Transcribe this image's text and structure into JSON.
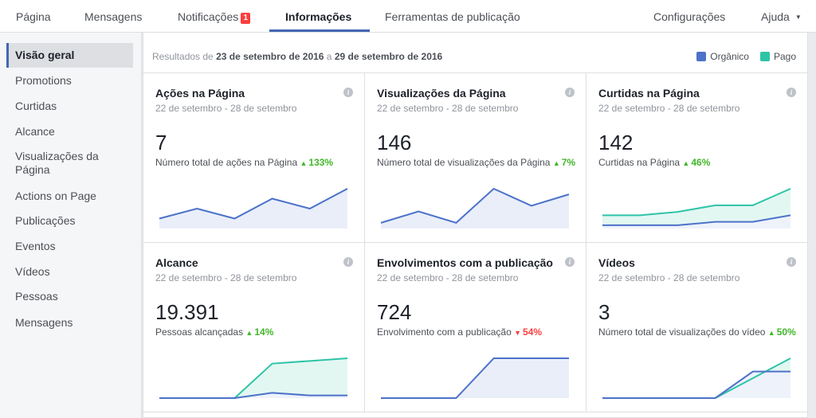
{
  "nav": {
    "items": [
      {
        "label": "Página"
      },
      {
        "label": "Mensagens"
      },
      {
        "label": "Notificações",
        "badge": "1"
      },
      {
        "label": "Informações"
      },
      {
        "label": "Ferramentas de publicação"
      },
      {
        "label": "Configurações"
      },
      {
        "label": "Ajuda"
      }
    ]
  },
  "sidebar": {
    "items": [
      {
        "label": "Visão geral"
      },
      {
        "label": "Promotions"
      },
      {
        "label": "Curtidas"
      },
      {
        "label": "Alcance"
      },
      {
        "label": "Visualizações da Página"
      },
      {
        "label": "Actions on Page"
      },
      {
        "label": "Publicações"
      },
      {
        "label": "Eventos"
      },
      {
        "label": "Vídeos"
      },
      {
        "label": "Pessoas"
      },
      {
        "label": "Mensagens"
      }
    ]
  },
  "summary": {
    "prefix": "Resultados de ",
    "start": "23 de setembro de 2016",
    "middle": " a ",
    "end": "29 de setembro de 2016"
  },
  "legend": {
    "organic": {
      "label": "Orgânico",
      "color": "#4c72c9"
    },
    "paid": {
      "label": "Pago",
      "color": "#2ec4a6"
    }
  },
  "cards": [
    {
      "title": "Ações na Página",
      "date": "22 de setembro - 28 de setembro",
      "value": "7",
      "desc": "Número total de ações na Página",
      "change": "133%",
      "direction": "up"
    },
    {
      "title": "Visualizações da Página",
      "date": "22 de setembro - 28 de setembro",
      "value": "146",
      "desc": "Número total de visualizações da Página",
      "change": "7%",
      "direction": "up"
    },
    {
      "title": "Curtidas na Página",
      "date": "22 de setembro - 28 de setembro",
      "value": "142",
      "desc": "Curtidas na Página",
      "change": "46%",
      "direction": "up"
    },
    {
      "title": "Alcance",
      "date": "22 de setembro - 28 de setembro",
      "value": "19.391",
      "desc": "Pessoas alcançadas",
      "change": "14%",
      "direction": "up"
    },
    {
      "title": "Envolvimentos com a publicação",
      "date": "22 de setembro - 28 de setembro",
      "value": "724",
      "desc": "Envolvimento com a publicação",
      "change": "54%",
      "direction": "down"
    },
    {
      "title": "Vídeos",
      "date": "22 de setembro - 28 de setembro",
      "value": "3",
      "desc": "Número total de visualizações do vídeo",
      "change": "50%",
      "direction": "up"
    }
  ],
  "chart_data": [
    {
      "type": "line",
      "series": [
        {
          "values": [
            1,
            2,
            1,
            3,
            2,
            4
          ]
        }
      ]
    },
    {
      "type": "line",
      "series": [
        {
          "values": [
            1,
            3,
            1,
            7,
            4,
            6
          ]
        }
      ]
    },
    {
      "type": "area",
      "series": [
        {
          "values": [
            1,
            1,
            1,
            2,
            2,
            4
          ]
        },
        {
          "values": [
            4,
            4,
            5,
            7,
            7,
            12
          ]
        }
      ]
    },
    {
      "type": "area",
      "series": [
        {
          "values": [
            0,
            0,
            0,
            2,
            1,
            1
          ]
        },
        {
          "values": [
            0,
            0,
            0,
            13,
            14,
            15
          ]
        }
      ]
    },
    {
      "type": "line",
      "series": [
        {
          "values": [
            0,
            0,
            0,
            10,
            10,
            10
          ]
        }
      ]
    },
    {
      "type": "area",
      "series": [
        {
          "values": [
            0,
            0,
            0,
            0,
            4,
            4
          ]
        },
        {
          "values": [
            0,
            0,
            0,
            0,
            3,
            6
          ]
        }
      ]
    }
  ]
}
